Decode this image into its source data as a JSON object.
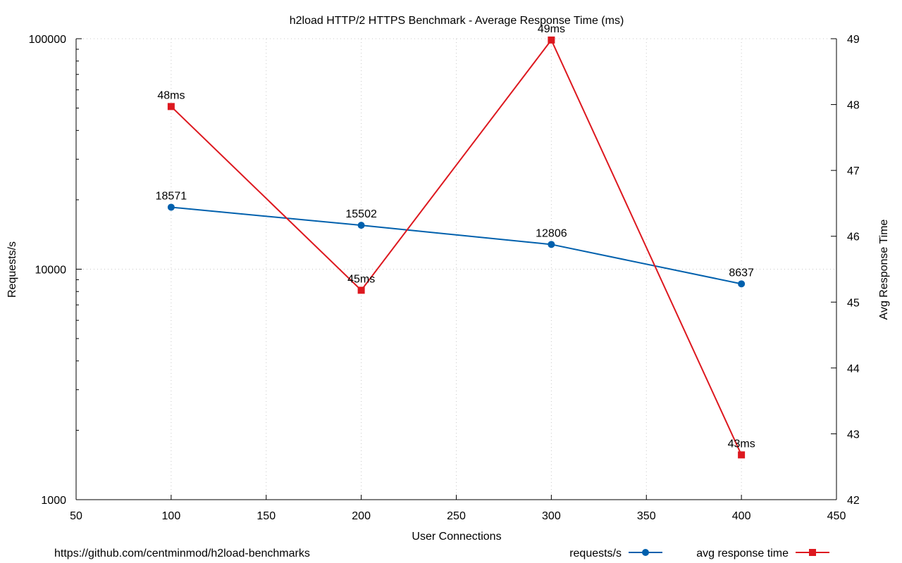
{
  "chart_data": {
    "type": "line",
    "title": "h2load HTTP/2 HTTPS Benchmark - Average Response Time (ms)",
    "xlabel": "User Connections",
    "ylabel": "Requests/s",
    "y2label": "Avg Response Time",
    "xlim": [
      50,
      450
    ],
    "xticks": [
      50,
      100,
      150,
      200,
      250,
      300,
      350,
      400,
      450
    ],
    "ylim": [
      1000,
      100000
    ],
    "y_scale": "log",
    "yticks": [
      1000,
      10000,
      100000
    ],
    "y2lim": [
      42,
      49
    ],
    "y2ticks": [
      42,
      43,
      44,
      45,
      46,
      47,
      48,
      49
    ],
    "grid": true,
    "legend_position": "bottom-right",
    "series": [
      {
        "name": "requests/s",
        "axis": "left",
        "color": "#0060ad",
        "marker": "circle",
        "x": [
          100,
          200,
          300,
          400
        ],
        "values": [
          18571,
          15502,
          12806,
          8637
        ],
        "labels": [
          "18571",
          "15502",
          "12806",
          "8637"
        ]
      },
      {
        "name": "avg response time",
        "axis": "right",
        "color": "#dd181f",
        "marker": "square",
        "x": [
          100,
          200,
          300,
          400
        ],
        "values": [
          47.97,
          45.18,
          48.98,
          42.68
        ],
        "labels": [
          "48ms",
          "45ms",
          "49ms",
          "43ms"
        ]
      }
    ]
  },
  "footer": {
    "source_text": "https://github.com/centminmod/h2load-benchmarks"
  }
}
